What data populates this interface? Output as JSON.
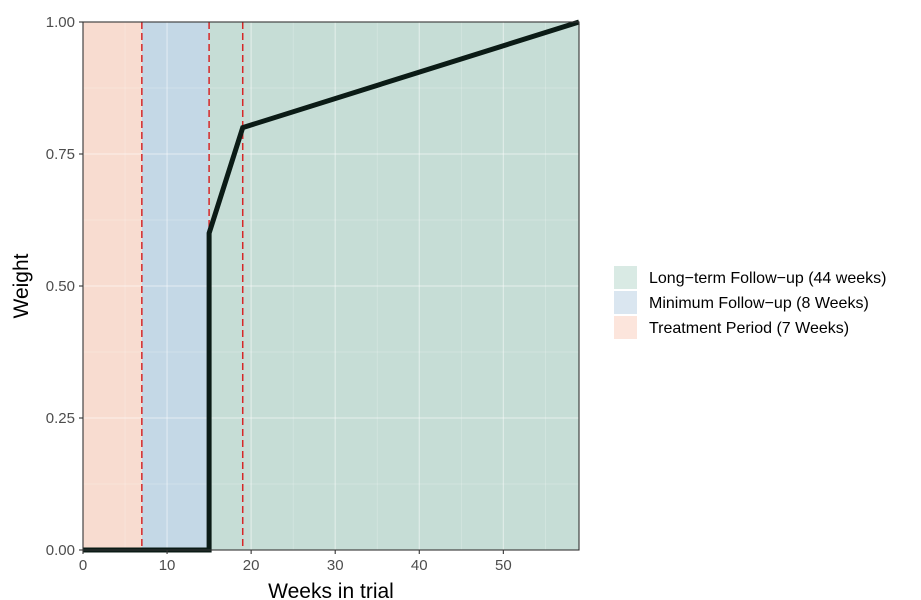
{
  "chart_data": {
    "type": "line",
    "title": "",
    "xlabel": "Weeks in trial",
    "ylabel": "Weight",
    "xlim": [
      0,
      59
    ],
    "ylim": [
      0,
      1
    ],
    "x_ticks": [
      0,
      10,
      20,
      30,
      40,
      50
    ],
    "x_tick_labels": [
      "0",
      "10",
      "20",
      "30",
      "40",
      "50"
    ],
    "y_ticks": [
      0,
      0.25,
      0.5,
      0.75,
      1
    ],
    "y_tick_labels": [
      "0.00",
      "0.25",
      "0.50",
      "0.75",
      "1.00"
    ],
    "grid": true,
    "legend_position": "right",
    "regions": [
      {
        "name": "Treatment Period (7 Weeks)",
        "start": 0,
        "end": 7,
        "color": "#F8DCD0"
      },
      {
        "name": "Minimum Follow-up (8 Weeks)",
        "start": 7,
        "end": 15,
        "color": "#C4D8E6"
      },
      {
        "name": "Long−term Follow−up (44 weeks)",
        "start": 15,
        "end": 59,
        "color": "#C6DDD6"
      }
    ],
    "legend_items": [
      {
        "label": "Long−term Follow−up (44 weeks)",
        "color": "#D9EAE4"
      },
      {
        "label": "Minimum Follow−up (8 Weeks)",
        "color": "#DAE6F0"
      },
      {
        "label": "Treatment Period (7 Weeks)",
        "color": "#FCE5DC"
      }
    ],
    "reference_lines": {
      "x": [
        7,
        15,
        19
      ],
      "color": "#D62728",
      "style": "dashed"
    },
    "series": [
      {
        "x": [
          0,
          15,
          15,
          19,
          59
        ],
        "y": [
          0,
          0,
          0.6,
          0.8,
          1.0
        ],
        "color": "#0B1B16"
      }
    ]
  }
}
